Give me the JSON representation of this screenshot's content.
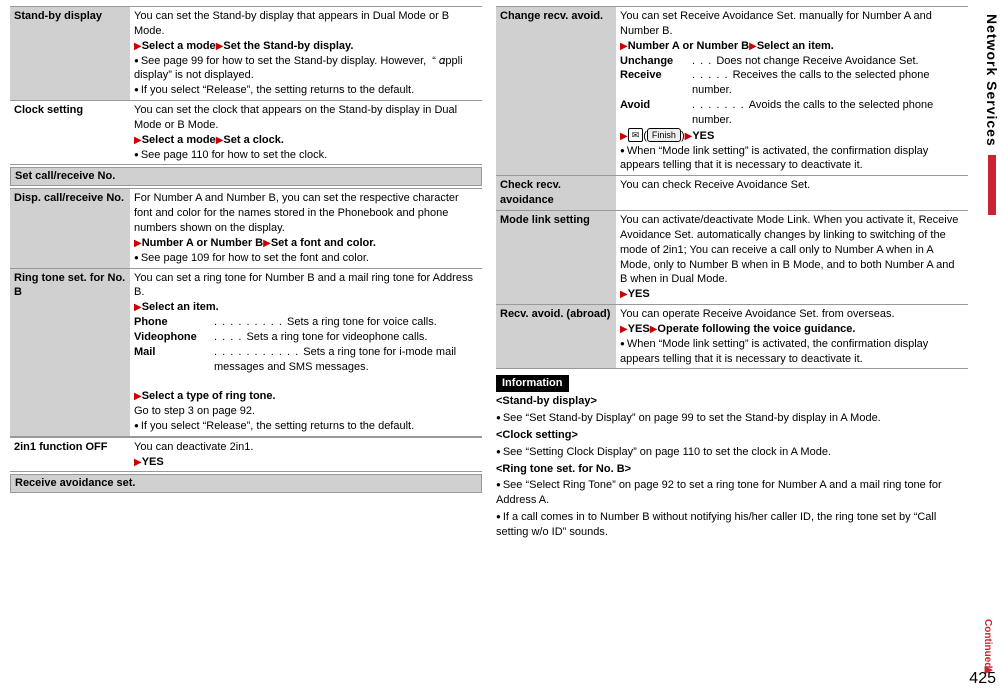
{
  "left": {
    "rows": [
      {
        "label": "Stand-by display",
        "shaded": true,
        "body": "<span data-name='text' data-interactable='false'>You can set the Stand-by display that appears in Dual Mode or B Mode.</span><br><span class='tri' data-name='triangle-icon' data-interactable='false'>▶</span><b data-name='text' data-interactable='false'>Select a mode</b><span class='tri' data-name='triangle-icon' data-interactable='false'>▶</span><b data-name='text' data-interactable='false'>Set the Stand-by display.</b><br><span class='bullet' data-name='bullet-icon' data-interactable='false'></span><span data-name='text' data-interactable='false'>See page 99 for how to set the Stand-by display. However, &nbsp;&ldquo;&nbsp;&#x1D6FC;ppli display&rdquo; is not displayed.</span><br><span class='bullet' data-name='bullet-icon' data-interactable='false'></span><span data-name='text' data-interactable='false'>If you select &ldquo;Release&rdquo;, the setting returns to the default.</span>"
      },
      {
        "label": "Clock setting",
        "shaded": false,
        "body": "<span data-name='text' data-interactable='false'>You can set the clock that appears on the Stand-by display in Dual Mode or B Mode.</span><br><span class='tri' data-name='triangle-icon' data-interactable='false'>▶</span><b data-name='text' data-interactable='false'>Select a mode</b><span class='tri' data-name='triangle-icon' data-interactable='false'>▶</span><b data-name='text' data-interactable='false'>Set a clock.</b><br><span class='bullet' data-name='bullet-icon' data-interactable='false'></span><span data-name='text' data-interactable='false'>See page 110 for how to set the clock.</span>"
      }
    ],
    "section1": "Set call/receive No.",
    "rows2": [
      {
        "label": "Disp. call/receive No.",
        "shaded": true,
        "body": "<span data-name='text' data-interactable='false'>For Number A and Number B, you can set the respective character font and color for the names stored in the Phonebook and phone numbers shown on the display.</span><br><span class='tri' data-name='triangle-icon' data-interactable='false'>▶</span><b data-name='text' data-interactable='false'>Number A or Number B</b><span class='tri' data-name='triangle-icon' data-interactable='false'>▶</span><b data-name='text' data-interactable='false'>Set a font and color.</b><br><span class='bullet' data-name='bullet-icon' data-interactable='false'></span><span data-name='text' data-interactable='false'>See page 109 for how to set the font and color.</span>"
      },
      {
        "label": "Ring tone set. for No. B",
        "shaded": true,
        "body": "<span data-name='text' data-interactable='false'>You can set a ring tone for Number B and a mail ring tone for Address B.</span><br><span class='tri' data-name='triangle-icon' data-interactable='false'>▶</span><b data-name='text' data-interactable='false'>Select an item.</b><br><div class='dl'><b data-name='text' data-interactable='false'>Phone</b><span data-name='text' data-interactable='false'><span class='dots'> . . . . . . . . . </span>Sets a ring tone for voice calls.</span><b data-name='text' data-interactable='false'>Videophone</b><span data-name='text' data-interactable='false'><span class='dots'> . . . . </span>Sets a ring tone for videophone calls.</span><b data-name='text' data-interactable='false'>Mail</b><span data-name='text' data-interactable='false'><span class='dots'> . . . . . . . . . . . </span>Sets a ring tone for i-mode mail messages and SMS messages.</span></div><br><span class='tri' data-name='triangle-icon' data-interactable='false'>▶</span><b data-name='text' data-interactable='false'>Select a type of ring tone.</b><br><span data-name='text' data-interactable='false'>Go to step 3 on page 92.</span><br><span class='bullet' data-name='bullet-icon' data-interactable='false'></span><span data-name='text' data-interactable='false'>If you select &ldquo;Release&rdquo;, the setting returns to the default.</span>"
      }
    ],
    "rows3": [
      {
        "label": "2in1 function OFF",
        "shaded": false,
        "body": "<span data-name='text' data-interactable='false'>You can deactivate 2in1.</span><br><span class='tri' data-name='triangle-icon' data-interactable='false'>▶</span><b data-name='text' data-interactable='false'>YES</b>"
      }
    ],
    "section2": "Receive avoidance set."
  },
  "right": {
    "rows": [
      {
        "label": "Change recv. avoid.",
        "shaded": true,
        "body": "<span data-name='text' data-interactable='false'>You can set Receive Avoidance Set. manually for Number A and Number B.</span><br><span class='tri' data-name='triangle-icon' data-interactable='false'>▶</span><b data-name='text' data-interactable='false'>Number A or Number B</b><span class='tri' data-name='triangle-icon' data-interactable='false'>▶</span><b data-name='text' data-interactable='false'>Select an item.</b><br><div class='dl2'><b data-name='text' data-interactable='false'>Unchange</b><span data-name='text' data-interactable='false'><span class='dots'> . . . </span>Does not change Receive Avoidance Set.</span><b data-name='text' data-interactable='false'>Receive</b><span data-name='text' data-interactable='false'><span class='dots'> . . . . . </span>Receives the calls to the selected phone number.</span><b data-name='text' data-interactable='false'>Avoid</b><span data-name='text' data-interactable='false'><span class='dots'> . . . . . . . </span>Avoids the calls to the selected phone number.</span></div><span class='tri' data-name='triangle-icon' data-interactable='false'>▶</span><span class='env' data-name='mail-icon' data-interactable='false'>✉</span>(<span class='finish' data-name='finish-button-icon' data-interactable='false'>Finish</span>)<span class='tri' data-name='triangle-icon' data-interactable='false'>▶</span><b data-name='text' data-interactable='false'>YES</b><br><span class='bullet' data-name='bullet-icon' data-interactable='false'></span><span data-name='text' data-interactable='false'>When &ldquo;Mode link setting&rdquo; is activated, the confirmation display appears telling that it is necessary to deactivate it.</span>"
      },
      {
        "label": "Check recv. avoidance",
        "shaded": true,
        "body": "<span data-name='text' data-interactable='false'>You can check Receive Avoidance Set.</span>"
      },
      {
        "label": "Mode link setting",
        "shaded": true,
        "body": "<span data-name='text' data-interactable='false'>You can activate/deactivate Mode Link. When you activate it, Receive Avoidance Set. automatically changes by linking to switching of the mode of 2in1; You can receive a call only to Number A when in A Mode, only to Number B when in B Mode, and to both Number A and B when in Dual Mode.</span><br><span class='tri' data-name='triangle-icon' data-interactable='false'>▶</span><b data-name='text' data-interactable='false'>YES</b>"
      },
      {
        "label": "Recv. avoid. (abroad)",
        "shaded": true,
        "body": "<span data-name='text' data-interactable='false'>You can operate Receive Avoidance Set. from overseas.</span><br><span class='tri' data-name='triangle-icon' data-interactable='false'>▶</span><b data-name='text' data-interactable='false'>YES</b><span class='tri' data-name='triangle-icon' data-interactable='false'>▶</span><b data-name='text' data-interactable='false'>Operate following the voice guidance.</b><br><span class='bullet' data-name='bullet-icon' data-interactable='false'></span><span data-name='text' data-interactable='false'>When &ldquo;Mode link setting&rdquo; is activated, the confirmation display appears telling that it is necessary to deactivate it.</span>"
      }
    ],
    "info_label": "Information",
    "info_body": "<p><b data-name='text' data-interactable='false'>&lt;Stand-by display&gt;</b></p><p><span class='bullet' data-name='bullet-icon' data-interactable='false'></span><span data-name='text' data-interactable='false'>See &ldquo;Set Stand-by Display&rdquo; on page 99 to set the Stand-by display in A Mode.</span></p><p><b data-name='text' data-interactable='false'>&lt;Clock setting&gt;</b></p><p><span class='bullet' data-name='bullet-icon' data-interactable='false'></span><span data-name='text' data-interactable='false'>See &ldquo;Setting Clock Display&rdquo; on page 110 to set the clock in A Mode.</span></p><p><b data-name='text' data-interactable='false'>&lt;Ring tone set. for No. B&gt;</b></p><p><span class='bullet' data-name='bullet-icon' data-interactable='false'></span><span data-name='text' data-interactable='false'>See &ldquo;Select Ring Tone&rdquo; on page 92 to set a ring tone for Number A and a mail ring tone for Address A.</span></p><p><span class='bullet' data-name='bullet-icon' data-interactable='false'></span><span data-name='text' data-interactable='false'>If a call comes in to Number B without notifying his/her caller ID, the ring tone set by &ldquo;Call setting w/o ID&rdquo; sounds.</span></p>"
  },
  "side_label": "Network Services",
  "continued": "Continued",
  "page_number": "425"
}
